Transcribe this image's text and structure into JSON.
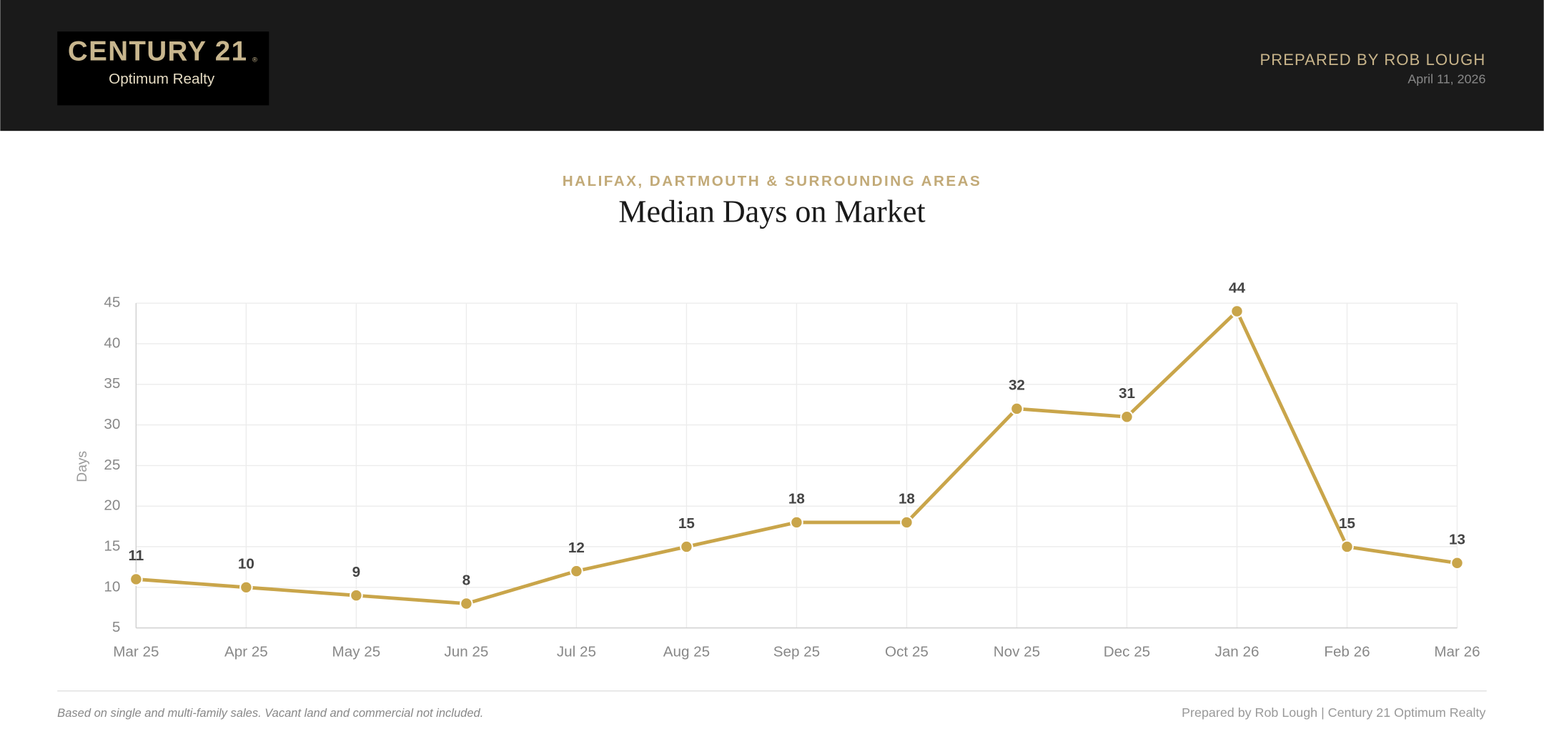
{
  "header": {
    "logo": {
      "brand": "CENTURY 21",
      "registered": "®",
      "office": "Optimum Realty"
    },
    "prepared_by": "PREPARED BY ROB LOUGH",
    "date": "April 11, 2026"
  },
  "chart_data": {
    "type": "line",
    "subtitle": "HALIFAX, DARTMOUTH & SURROUNDING AREAS",
    "title": "Median Days on Market",
    "y_label": "Days",
    "categories": [
      "Mar 25",
      "Apr 25",
      "May 25",
      "Jun 25",
      "Jul 25",
      "Aug 25",
      "Sep 25",
      "Oct 25",
      "Nov 25",
      "Dec 25",
      "Jan 26",
      "Feb 26",
      "Mar 26"
    ],
    "values": [
      11,
      10,
      9,
      8,
      12,
      15,
      18,
      18,
      32,
      31,
      44,
      15,
      13
    ],
    "color": "#c9a54a",
    "ylim": [
      5,
      45
    ],
    "yticks": [
      5,
      10,
      15,
      20,
      25,
      30,
      35,
      40,
      45
    ],
    "grid": true
  },
  "footer": {
    "note": "Based on single and multi-family sales. Vacant land and commercial not included.",
    "credit": "Prepared by Rob Lough | Century 21 Optimum Realty"
  }
}
